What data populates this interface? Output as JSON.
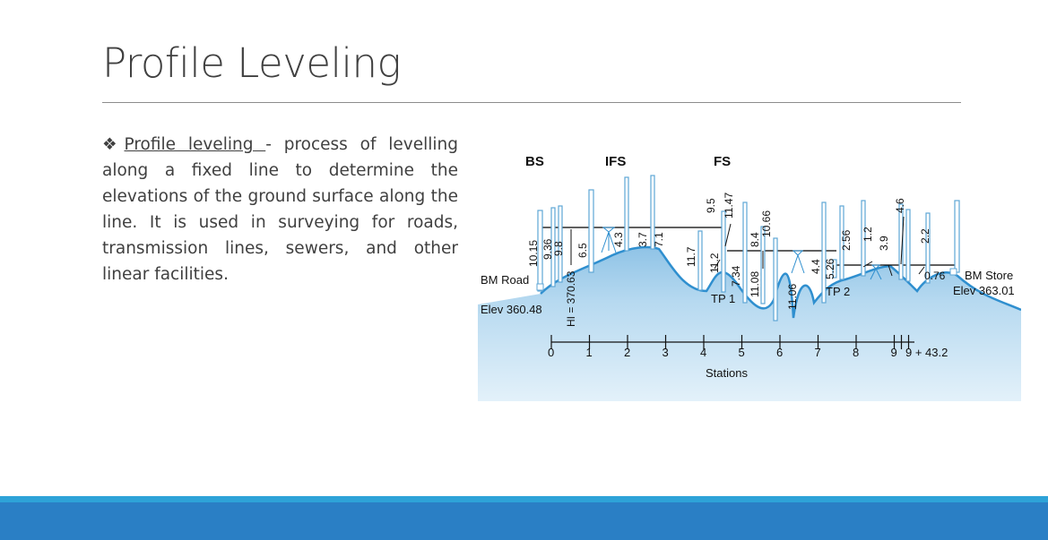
{
  "slide": {
    "title": "Profile Leveling",
    "bullet_symbol": "❖",
    "term": "Profile leveling ",
    "definition": "- process of levelling along a fixed line to determine the elevations of the ground surface along the line. It is used in surveying for roads, transmission lines, sewers, and other linear facilities."
  },
  "diagram": {
    "headers": {
      "bs": "BS",
      "ifs": "IFS",
      "fs": "FS"
    },
    "bm_road": {
      "name": "BM Road",
      "elev": "Elev 360.48"
    },
    "bm_store": {
      "name": "BM Store",
      "elev": "Elev 363.01"
    },
    "hi_label": "HI = 370.63",
    "turning_points": {
      "tp1": "TP 1",
      "tp2": "TP 2"
    },
    "readings": [
      "10.15",
      "9.36",
      "9.8",
      "6.5",
      "4.3",
      "3.7",
      "7.1",
      "11.7",
      "11.2",
      "9.5",
      "11.47",
      "7.34",
      "11.08",
      "8.4",
      "10.66",
      "11.06",
      "4.4",
      "5.26",
      "2.56",
      "1.2",
      "3.9",
      "4.6",
      "2.2",
      "0.76"
    ],
    "stations_label": "Stations",
    "station_ticks": [
      "0",
      "1",
      "2",
      "3",
      "4",
      "5",
      "6",
      "7",
      "8",
      "9"
    ],
    "end_station": "9 + 43.2"
  },
  "colors": {
    "title_text": "#404040",
    "ground_fill": "#a9d2ec",
    "ground_line": "#2f8fcf",
    "rod_stroke": "#5ea6d6",
    "accent_bar_light": "#2ea3d8",
    "accent_bar_dark": "#2a7fc5"
  }
}
